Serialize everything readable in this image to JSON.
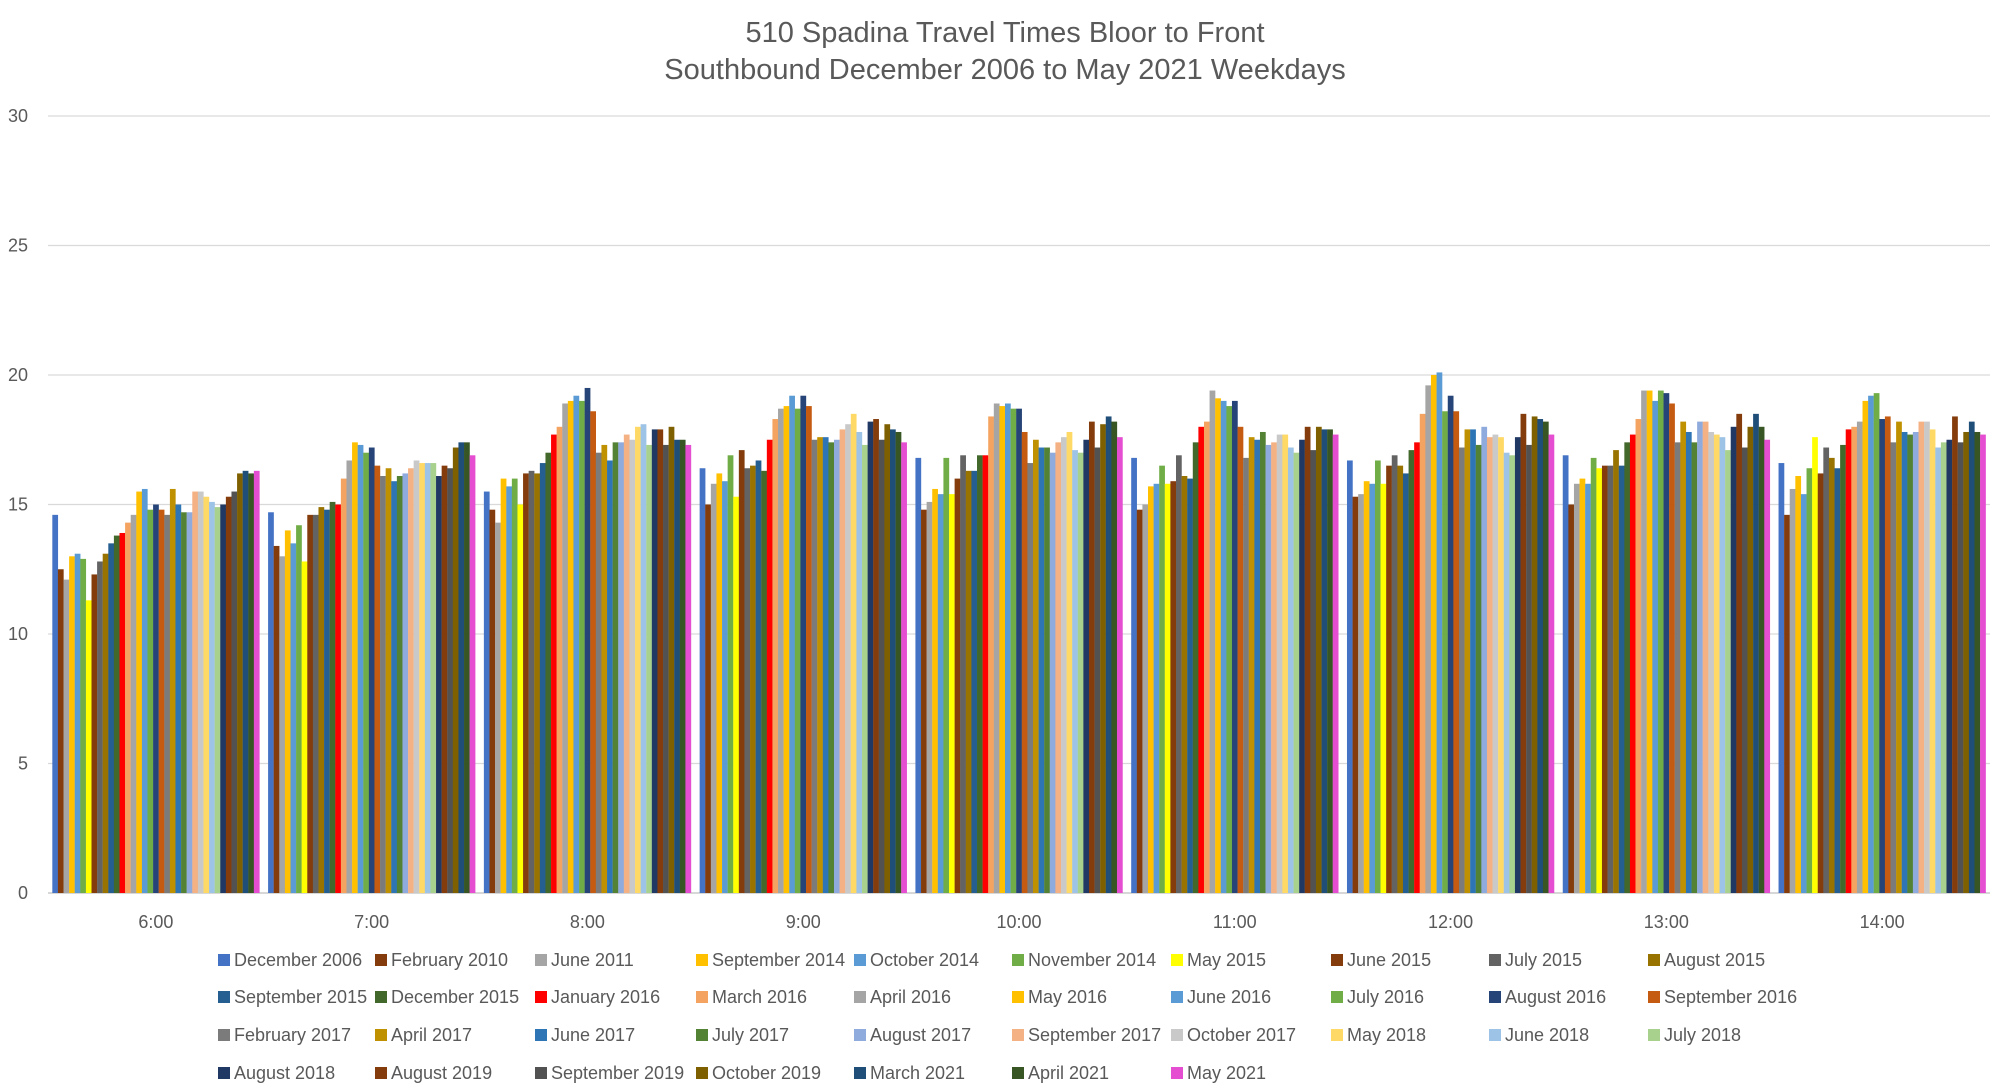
{
  "chart_data": {
    "type": "bar",
    "title": "510 Spadina Travel Times Bloor to Front",
    "subtitle": "Southbound December 2006 to May 2021 Weekdays",
    "xlabel": "",
    "ylabel": "",
    "ylim": [
      0,
      30
    ],
    "yticks": [
      "0",
      "5",
      "10",
      "15",
      "20",
      "25",
      "30"
    ],
    "grid": true,
    "legend_position": "bottom",
    "categories": [
      "6:00",
      "7:00",
      "8:00",
      "9:00",
      "10:00",
      "11:00",
      "12:00",
      "13:00",
      "14:00"
    ],
    "series": [
      {
        "name": "December 2006",
        "color": "#4472C4",
        "values": [
          14.6,
          14.7,
          15.5,
          16.4,
          16.8,
          16.8,
          16.7,
          16.9,
          16.6
        ]
      },
      {
        "name": "February 2010",
        "color": "#843C0C",
        "values": [
          12.5,
          13.4,
          14.8,
          15.0,
          14.8,
          14.8,
          15.3,
          15.0,
          14.6
        ]
      },
      {
        "name": "June 2011",
        "color": "#A5A5A5",
        "values": [
          12.1,
          13.0,
          14.3,
          15.8,
          15.1,
          15.0,
          15.4,
          15.8,
          15.6
        ]
      },
      {
        "name": "September 2014",
        "color": "#FFC000",
        "values": [
          13.0,
          14.0,
          16.0,
          16.2,
          15.6,
          15.7,
          15.9,
          16.0,
          16.1
        ]
      },
      {
        "name": "October 2014",
        "color": "#5B9BD5",
        "values": [
          13.1,
          13.5,
          15.7,
          15.9,
          15.4,
          15.8,
          15.8,
          15.8,
          15.4
        ]
      },
      {
        "name": "November 2014",
        "color": "#70AD47",
        "values": [
          12.9,
          14.2,
          16.0,
          16.9,
          16.8,
          16.5,
          16.7,
          16.8,
          16.4
        ]
      },
      {
        "name": "May 2015",
        "color": "#FFFF00",
        "values": [
          11.3,
          12.8,
          15.0,
          15.3,
          15.4,
          15.8,
          15.8,
          16.4,
          17.6
        ]
      },
      {
        "name": "June 2015",
        "color": "#843C0C",
        "values": [
          12.3,
          14.6,
          16.2,
          17.1,
          16.0,
          15.9,
          16.5,
          16.5,
          16.2
        ]
      },
      {
        "name": "July 2015",
        "color": "#636363",
        "values": [
          12.8,
          14.6,
          16.3,
          16.4,
          16.9,
          16.9,
          16.9,
          16.5,
          17.2
        ]
      },
      {
        "name": "August 2015",
        "color": "#997300",
        "values": [
          13.1,
          14.9,
          16.2,
          16.5,
          16.3,
          16.1,
          16.5,
          17.1,
          16.8
        ]
      },
      {
        "name": "September 2015",
        "color": "#255E91",
        "values": [
          13.5,
          14.8,
          16.6,
          16.7,
          16.3,
          16.0,
          16.2,
          16.5,
          16.4
        ]
      },
      {
        "name": "December 2015",
        "color": "#43682B",
        "values": [
          13.8,
          15.1,
          17.0,
          16.3,
          16.9,
          17.4,
          17.1,
          17.4,
          17.3
        ]
      },
      {
        "name": "January 2016",
        "color": "#FF0000",
        "values": [
          13.9,
          15.0,
          17.7,
          17.5,
          16.9,
          18.0,
          17.4,
          17.7,
          17.9
        ]
      },
      {
        "name": "March 2016",
        "color": "#F4A460",
        "values": [
          14.3,
          16.0,
          18.0,
          18.3,
          18.4,
          18.2,
          18.5,
          18.3,
          18.0
        ]
      },
      {
        "name": "April 2016",
        "color": "#A5A5A5",
        "values": [
          14.6,
          16.7,
          18.9,
          18.7,
          18.9,
          19.4,
          19.6,
          19.4,
          18.2
        ]
      },
      {
        "name": "May 2016",
        "color": "#FFC000",
        "values": [
          15.5,
          17.4,
          19.0,
          18.8,
          18.8,
          19.1,
          20.0,
          19.4,
          19.0
        ]
      },
      {
        "name": "June 2016",
        "color": "#5B9BD5",
        "values": [
          15.6,
          17.3,
          19.2,
          19.2,
          18.9,
          19.0,
          20.1,
          19.0,
          19.2
        ]
      },
      {
        "name": "July 2016",
        "color": "#70AD47",
        "values": [
          14.8,
          17.0,
          19.0,
          18.7,
          18.7,
          18.8,
          18.6,
          19.4,
          19.3
        ]
      },
      {
        "name": "August 2016",
        "color": "#264478",
        "values": [
          15.0,
          17.2,
          19.5,
          19.2,
          18.7,
          19.0,
          19.2,
          19.3,
          18.3
        ]
      },
      {
        "name": "September 2016",
        "color": "#C55A11",
        "values": [
          14.8,
          16.5,
          18.6,
          18.8,
          17.8,
          18.0,
          18.6,
          18.9,
          18.4
        ]
      },
      {
        "name": "February 2017",
        "color": "#7B7B7B",
        "values": [
          14.6,
          16.1,
          17.0,
          17.5,
          16.6,
          16.8,
          17.2,
          17.4,
          17.4
        ]
      },
      {
        "name": "April 2017",
        "color": "#BF9000",
        "values": [
          15.6,
          16.4,
          17.3,
          17.6,
          17.5,
          17.6,
          17.9,
          18.2,
          18.2
        ]
      },
      {
        "name": "June 2017",
        "color": "#2E75B6",
        "values": [
          15.0,
          15.9,
          16.7,
          17.6,
          17.2,
          17.5,
          17.9,
          17.8,
          17.8
        ]
      },
      {
        "name": "July 2017",
        "color": "#548235",
        "values": [
          14.7,
          16.1,
          17.4,
          17.4,
          17.2,
          17.8,
          17.3,
          17.4,
          17.7
        ]
      },
      {
        "name": "August 2017",
        "color": "#8FAADC",
        "values": [
          14.7,
          16.2,
          17.4,
          17.5,
          17.0,
          17.3,
          18.0,
          18.2,
          17.8
        ]
      },
      {
        "name": "September 2017",
        "color": "#F4B183",
        "values": [
          15.5,
          16.4,
          17.7,
          17.9,
          17.4,
          17.4,
          17.6,
          18.2,
          18.2
        ]
      },
      {
        "name": "October 2017",
        "color": "#C9C9C9",
        "values": [
          15.5,
          16.7,
          17.5,
          18.1,
          17.6,
          17.7,
          17.7,
          17.8,
          18.2
        ]
      },
      {
        "name": "May 2018",
        "color": "#FFD966",
        "values": [
          15.3,
          16.6,
          18.0,
          18.5,
          17.8,
          17.7,
          17.6,
          17.7,
          17.9
        ]
      },
      {
        "name": "June 2018",
        "color": "#9DC3E6",
        "values": [
          15.1,
          16.6,
          18.1,
          17.8,
          17.1,
          17.2,
          17.0,
          17.6,
          17.2
        ]
      },
      {
        "name": "July 2018",
        "color": "#A9D18E",
        "values": [
          14.9,
          16.6,
          17.3,
          17.3,
          17.0,
          17.0,
          16.9,
          17.1,
          17.4
        ]
      },
      {
        "name": "August 2018",
        "color": "#203864",
        "values": [
          15.0,
          16.1,
          17.9,
          18.2,
          17.5,
          17.5,
          17.6,
          18.0,
          17.5
        ]
      },
      {
        "name": "August 2019",
        "color": "#843C0C",
        "values": [
          15.3,
          16.5,
          17.9,
          18.3,
          18.2,
          18.0,
          18.5,
          18.5,
          18.4
        ]
      },
      {
        "name": "September 2019",
        "color": "#525252",
        "values": [
          15.5,
          16.4,
          17.3,
          17.5,
          17.2,
          17.1,
          17.3,
          17.2,
          17.4
        ]
      },
      {
        "name": "October 2019",
        "color": "#7F6000",
        "values": [
          16.2,
          17.2,
          18.0,
          18.1,
          18.1,
          18.0,
          18.4,
          18.0,
          17.8
        ]
      },
      {
        "name": "March 2021",
        "color": "#1F4E79",
        "values": [
          16.3,
          17.4,
          17.5,
          17.9,
          18.4,
          17.9,
          18.3,
          18.5,
          18.2
        ]
      },
      {
        "name": "April 2021",
        "color": "#375623",
        "values": [
          16.2,
          17.4,
          17.5,
          17.8,
          18.2,
          17.9,
          18.2,
          18.0,
          17.8
        ]
      },
      {
        "name": "May 2021",
        "color": "#E54ED0",
        "values": [
          16.3,
          16.9,
          17.3,
          17.4,
          17.6,
          17.7,
          17.7,
          17.5,
          17.7
        ]
      }
    ]
  }
}
